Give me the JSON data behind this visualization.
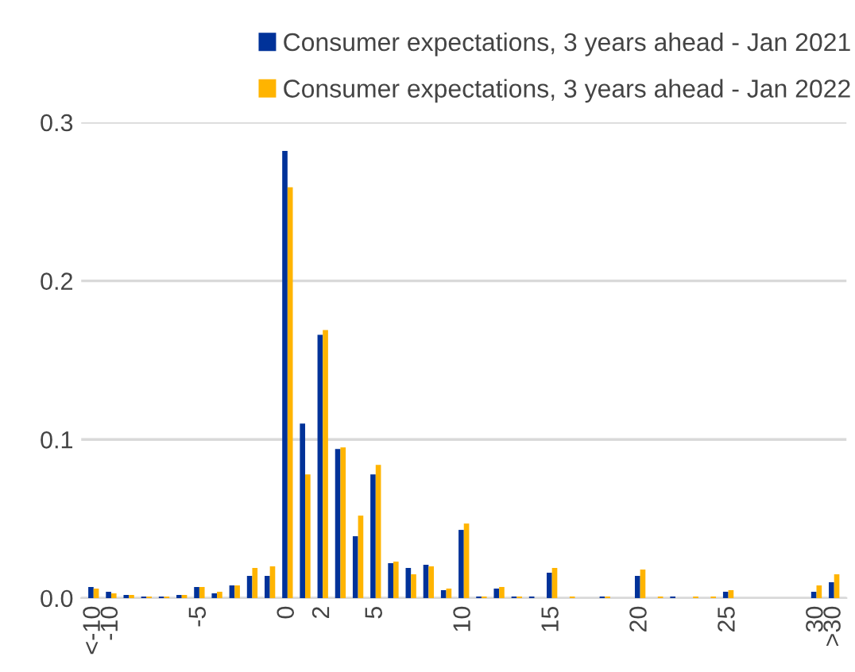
{
  "chart_data": {
    "type": "bar",
    "categories": [
      "<-10",
      "-10",
      null,
      null,
      null,
      null,
      "-5",
      null,
      null,
      null,
      null,
      "0",
      null,
      "2",
      null,
      null,
      "5",
      null,
      null,
      null,
      null,
      "10",
      null,
      null,
      null,
      null,
      "15",
      null,
      null,
      null,
      null,
      "20",
      null,
      null,
      null,
      null,
      "25",
      null,
      null,
      null,
      null,
      "30",
      ">30"
    ],
    "series": [
      {
        "name": "Consumer expectations, 3 years ahead - Jan 2021",
        "color": "#003299",
        "values": [
          0.007,
          0.004,
          0.002,
          0.001,
          0.001,
          0.002,
          0.007,
          0.003,
          0.008,
          0.014,
          0.014,
          0.282,
          0.11,
          0.166,
          0.094,
          0.039,
          0.078,
          0.022,
          0.019,
          0.021,
          0.005,
          0.043,
          0.001,
          0.006,
          0.001,
          0.001,
          0.016,
          0,
          0,
          0.001,
          0,
          0.014,
          0,
          0.001,
          0,
          0,
          0.004,
          0,
          0,
          0,
          0,
          0.004,
          0.01
        ]
      },
      {
        "name": "Consumer expectations, 3 years ahead - Jan 2022",
        "color": "#ffb400",
        "values": [
          0.006,
          0.003,
          0.002,
          0.001,
          0.001,
          0.002,
          0.007,
          0.004,
          0.008,
          0.019,
          0.02,
          0.259,
          0.078,
          0.169,
          0.095,
          0.052,
          0.084,
          0.023,
          0.015,
          0.02,
          0.006,
          0.047,
          0.001,
          0.007,
          0.001,
          0,
          0.019,
          0.001,
          0,
          0.001,
          0,
          0.018,
          0.001,
          0,
          0.001,
          0.001,
          0.005,
          0,
          0,
          0,
          0,
          0.008,
          0.015
        ]
      }
    ],
    "ylim": [
      0,
      0.3
    ],
    "yticks": [
      {
        "value": 0,
        "label": "0.0"
      },
      {
        "value": 0.1,
        "label": "0.1"
      },
      {
        "value": 0.2,
        "label": "0.2"
      },
      {
        "value": 0.3,
        "label": "0.3"
      }
    ],
    "grid": "y",
    "legend": "top"
  }
}
